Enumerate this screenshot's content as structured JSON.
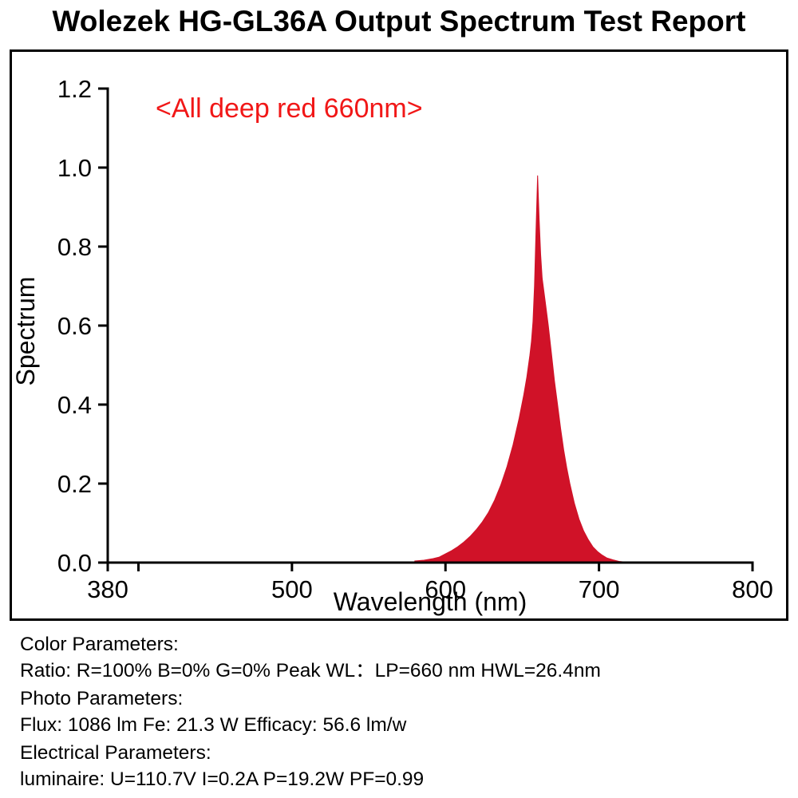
{
  "title": "Wolezek HG-GL36A Output Spectrum Test Report",
  "chart_data": {
    "type": "area",
    "title": "Wolezek HG-GL36A Output Spectrum Test Report",
    "annotation": {
      "text": "<All deep red 660nm>",
      "color": "#f11717"
    },
    "xlabel": "Wavelength (nm)",
    "ylabel": "Spectrum",
    "xlim": [
      380,
      800
    ],
    "ylim": [
      0,
      1.2
    ],
    "grid": false,
    "legend": "none",
    "peak": {
      "wavelength_nm": 660,
      "value": 0.98
    },
    "x_ticks": [
      {
        "value": 380,
        "label": "380"
      },
      {
        "value": 400,
        "label": ""
      },
      {
        "value": 500,
        "label": "500"
      },
      {
        "value": 600,
        "label": "600"
      },
      {
        "value": 700,
        "label": "700"
      },
      {
        "value": 800,
        "label": "800"
      }
    ],
    "y_ticks": [
      {
        "value": 0.0,
        "label": "0.0"
      },
      {
        "value": 0.2,
        "label": "0.2"
      },
      {
        "value": 0.4,
        "label": "0.4"
      },
      {
        "value": 0.6,
        "label": "0.6"
      },
      {
        "value": 0.8,
        "label": "0.8"
      },
      {
        "value": 1.0,
        "label": "1.0"
      },
      {
        "value": 1.2,
        "label": "1.2"
      }
    ],
    "series": [
      {
        "name": "deep-red-660nm-spectrum",
        "color": "#d01228",
        "points": [
          [
            580,
            0.004
          ],
          [
            586,
            0.006
          ],
          [
            592,
            0.01
          ],
          [
            596,
            0.014
          ],
          [
            600,
            0.022
          ],
          [
            604,
            0.03
          ],
          [
            608,
            0.04
          ],
          [
            612,
            0.052
          ],
          [
            616,
            0.066
          ],
          [
            620,
            0.083
          ],
          [
            624,
            0.103
          ],
          [
            628,
            0.127
          ],
          [
            632,
            0.158
          ],
          [
            636,
            0.196
          ],
          [
            640,
            0.242
          ],
          [
            644,
            0.298
          ],
          [
            648,
            0.366
          ],
          [
            651,
            0.425
          ],
          [
            653,
            0.47
          ],
          [
            655,
            0.525
          ],
          [
            656,
            0.56
          ],
          [
            657,
            0.61
          ],
          [
            658,
            0.7
          ],
          [
            659,
            0.84
          ],
          [
            660,
            0.98
          ],
          [
            661,
            0.87
          ],
          [
            662,
            0.78
          ],
          [
            663,
            0.72
          ],
          [
            665,
            0.66
          ],
          [
            667,
            0.6
          ],
          [
            669,
            0.53
          ],
          [
            671,
            0.46
          ],
          [
            673,
            0.4
          ],
          [
            675,
            0.34
          ],
          [
            677,
            0.285
          ],
          [
            679,
            0.24
          ],
          [
            681,
            0.2
          ],
          [
            684,
            0.15
          ],
          [
            687,
            0.11
          ],
          [
            690,
            0.08
          ],
          [
            693,
            0.058
          ],
          [
            696,
            0.04
          ],
          [
            699,
            0.028
          ],
          [
            702,
            0.019
          ],
          [
            705,
            0.012
          ],
          [
            709,
            0.007
          ],
          [
            713,
            0.003
          ],
          [
            718,
            0.001
          ],
          [
            722,
            0.0
          ]
        ]
      }
    ]
  },
  "parameters": {
    "color_heading": "Color Parameters:",
    "color_line": "Ratio: R=100% B=0% G=0% Peak WL：LP=660 nm HWL=26.4nm",
    "photo_heading": "Photo Parameters:",
    "photo_line": "Flux: 1086 lm Fe: 21.3 W Efficacy: 56.6 lm/w",
    "electrical_heading": "Electrical Parameters:",
    "electrical_line": "luminaire: U=110.7V I=0.2A P=19.2W PF=0.99"
  }
}
